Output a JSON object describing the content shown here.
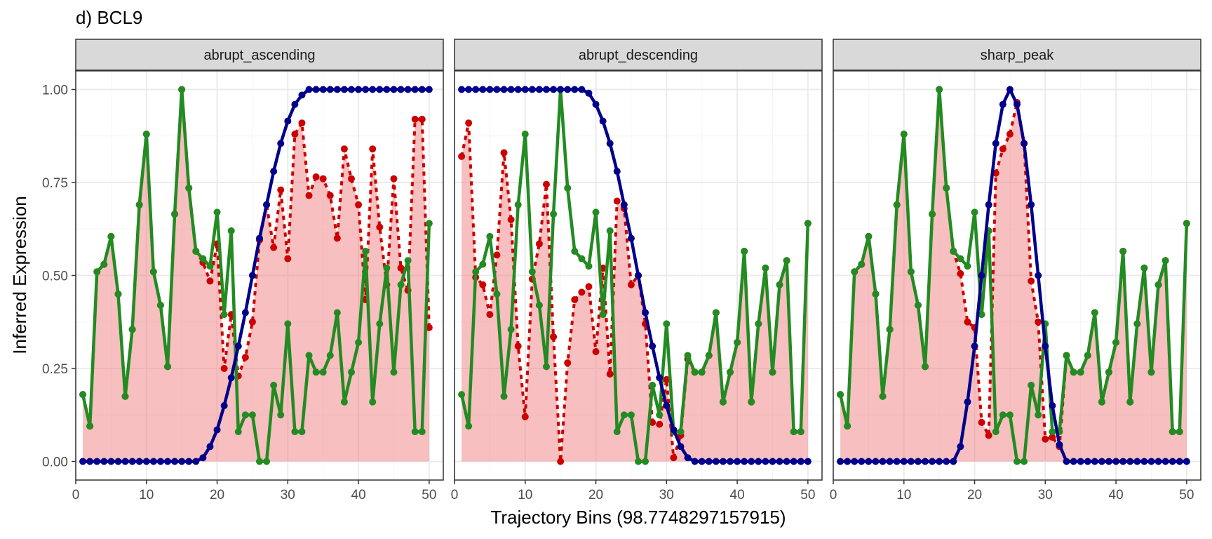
{
  "chart_data": {
    "type": "line",
    "title": "d) BCL9",
    "xlabel": "Trajectory Bins (98.7748297157915)",
    "ylabel": "Inferred Expression",
    "xlim": [
      0,
      52
    ],
    "ylim": [
      -0.05,
      1.05
    ],
    "x_ticks": [
      0,
      10,
      20,
      30,
      40,
      50
    ],
    "x_tick_labels": [
      "0",
      "10",
      "20",
      "30",
      "40",
      "50"
    ],
    "y_ticks": [
      0,
      0.25,
      0.5,
      0.75,
      1.0
    ],
    "y_tick_labels": [
      "0.00",
      "0.25",
      "0.50",
      "0.75",
      "1.00"
    ],
    "grid": true,
    "colors": {
      "pattern": "#00008B",
      "expression": "#228B22",
      "smoothed": "#CC0000",
      "area": "#F08080",
      "strip_bg": "#D9D9D9",
      "panel_border": "#333333",
      "grid_major": "#EBEBEB",
      "grid_minor": "#F5F5F5"
    },
    "x": [
      1,
      2,
      3,
      4,
      5,
      6,
      7,
      8,
      9,
      10,
      11,
      12,
      13,
      14,
      15,
      16,
      17,
      18,
      19,
      20,
      21,
      22,
      23,
      24,
      25,
      26,
      27,
      28,
      29,
      30,
      31,
      32,
      33,
      34,
      35,
      36,
      37,
      38,
      39,
      40,
      41,
      42,
      43,
      44,
      45,
      46,
      47,
      48,
      49,
      50
    ],
    "panels": [
      {
        "label": "abrupt_ascending",
        "series": [
          {
            "role": "pattern",
            "values": [
              0,
              0,
              0,
              0,
              0,
              0,
              0,
              0,
              0,
              0,
              0,
              0,
              0,
              0,
              0,
              0,
              0,
              0.01,
              0.04,
              0.085,
              0.15,
              0.225,
              0.31,
              0.4,
              0.5,
              0.6,
              0.69,
              0.78,
              0.855,
              0.915,
              0.96,
              0.985,
              1,
              1,
              1,
              1,
              1,
              1,
              1,
              1,
              1,
              1,
              1,
              1,
              1,
              1,
              1,
              1,
              1,
              1
            ]
          },
          {
            "role": "expression",
            "values": [
              0.18,
              0.095,
              0.51,
              0.53,
              0.605,
              0.45,
              0.175,
              0.355,
              0.69,
              0.88,
              0.51,
              0.42,
              0.255,
              0.665,
              1.0,
              0.735,
              0.565,
              0.545,
              0.525,
              0.67,
              0.395,
              0.62,
              0.08,
              0.125,
              0.125,
              0,
              0,
              0.205,
              0.125,
              0.37,
              0.08,
              0.08,
              0.285,
              0.24,
              0.24,
              0.285,
              0.4,
              0.16,
              0.24,
              0.32,
              0.565,
              0.16,
              0.37,
              0.52,
              0.24,
              0.475,
              0.54,
              0.08,
              0.08,
              0.64
            ]
          },
          {
            "role": "smoothed",
            "values": [
              0.18,
              0.095,
              0.51,
              0.53,
              0.605,
              0.45,
              0.175,
              0.355,
              0.69,
              0.88,
              0.51,
              0.42,
              0.255,
              0.665,
              1.0,
              0.735,
              0.565,
              0.535,
              0.485,
              0.585,
              0.25,
              0.395,
              0.23,
              0.28,
              0.375,
              0.595,
              0.69,
              0.575,
              0.73,
              0.545,
              0.88,
              0.91,
              0.715,
              0.765,
              0.76,
              0.715,
              0.6,
              0.84,
              0.76,
              0.69,
              0.435,
              0.84,
              0.63,
              0.475,
              0.76,
              0.52,
              0.46,
              0.92,
              0.92,
              0.36
            ]
          }
        ]
      },
      {
        "label": "abrupt_descending",
        "series": [
          {
            "role": "pattern",
            "values": [
              1,
              1,
              1,
              1,
              1,
              1,
              1,
              1,
              1,
              1,
              1,
              1,
              1,
              1,
              1,
              1,
              1,
              1,
              0.99,
              0.96,
              0.915,
              0.855,
              0.78,
              0.69,
              0.6,
              0.5,
              0.4,
              0.31,
              0.225,
              0.15,
              0.085,
              0.04,
              0.01,
              0,
              0,
              0,
              0,
              0,
              0,
              0,
              0,
              0,
              0,
              0,
              0,
              0,
              0,
              0,
              0,
              0
            ]
          },
          {
            "role": "expression",
            "values": [
              0.18,
              0.095,
              0.51,
              0.53,
              0.605,
              0.45,
              0.175,
              0.355,
              0.69,
              0.88,
              0.51,
              0.42,
              0.255,
              0.665,
              1.0,
              0.735,
              0.565,
              0.545,
              0.525,
              0.67,
              0.395,
              0.62,
              0.08,
              0.125,
              0.125,
              0,
              0,
              0.205,
              0.125,
              0.37,
              0.08,
              0.08,
              0.285,
              0.24,
              0.24,
              0.285,
              0.4,
              0.16,
              0.24,
              0.32,
              0.565,
              0.16,
              0.37,
              0.52,
              0.24,
              0.475,
              0.54,
              0.08,
              0.08,
              0.64
            ]
          },
          {
            "role": "smoothed",
            "values": [
              0.82,
              0.91,
              0.495,
              0.475,
              0.395,
              0.555,
              0.83,
              0.65,
              0.31,
              0.12,
              0.49,
              0.585,
              0.745,
              0.335,
              0,
              0.265,
              0.435,
              0.455,
              0.47,
              0.295,
              0.52,
              0.235,
              0.7,
              0.68,
              0.475,
              0.5,
              0.37,
              0.105,
              0.1,
              0.22,
              0.01,
              0.07,
              0.275,
              0.24,
              0.24,
              0.285,
              0.4,
              0.16,
              0.24,
              0.32,
              0.565,
              0.16,
              0.37,
              0.52,
              0.24,
              0.475,
              0.54,
              0.08,
              0.08,
              0.64
            ]
          }
        ]
      },
      {
        "label": "sharp_peak",
        "series": [
          {
            "role": "pattern",
            "values": [
              0,
              0,
              0,
              0,
              0,
              0,
              0,
              0,
              0,
              0,
              0,
              0,
              0,
              0,
              0,
              0,
              0,
              0.04,
              0.16,
              0.31,
              0.5,
              0.69,
              0.855,
              0.96,
              1.0,
              0.96,
              0.855,
              0.69,
              0.5,
              0.31,
              0.15,
              0.045,
              0,
              0,
              0,
              0,
              0,
              0,
              0,
              0,
              0,
              0,
              0,
              0,
              0,
              0,
              0,
              0,
              0,
              0
            ]
          },
          {
            "role": "expression",
            "values": [
              0.18,
              0.095,
              0.51,
              0.53,
              0.605,
              0.45,
              0.175,
              0.355,
              0.69,
              0.88,
              0.51,
              0.42,
              0.255,
              0.665,
              1.0,
              0.735,
              0.565,
              0.545,
              0.525,
              0.67,
              0.395,
              0.62,
              0.08,
              0.125,
              0.125,
              0,
              0,
              0.205,
              0.125,
              0.37,
              0.08,
              0.08,
              0.285,
              0.24,
              0.24,
              0.285,
              0.4,
              0.16,
              0.24,
              0.32,
              0.565,
              0.16,
              0.37,
              0.52,
              0.24,
              0.475,
              0.54,
              0.08,
              0.08,
              0.64
            ]
          },
          {
            "role": "smoothed",
            "values": [
              0.18,
              0.095,
              0.51,
              0.53,
              0.605,
              0.45,
              0.175,
              0.355,
              0.69,
              0.88,
              0.51,
              0.42,
              0.255,
              0.665,
              1.0,
              0.735,
              0.565,
              0.505,
              0.375,
              0.36,
              0.105,
              0.07,
              0.775,
              0.84,
              0.88,
              0.965,
              0.855,
              0.485,
              0.375,
              0.06,
              0.065,
              0.04,
              0.285,
              0.24,
              0.24,
              0.285,
              0.4,
              0.16,
              0.24,
              0.32,
              0.565,
              0.16,
              0.37,
              0.52,
              0.24,
              0.475,
              0.54,
              0.08,
              0.08,
              0.64
            ]
          }
        ]
      }
    ]
  }
}
